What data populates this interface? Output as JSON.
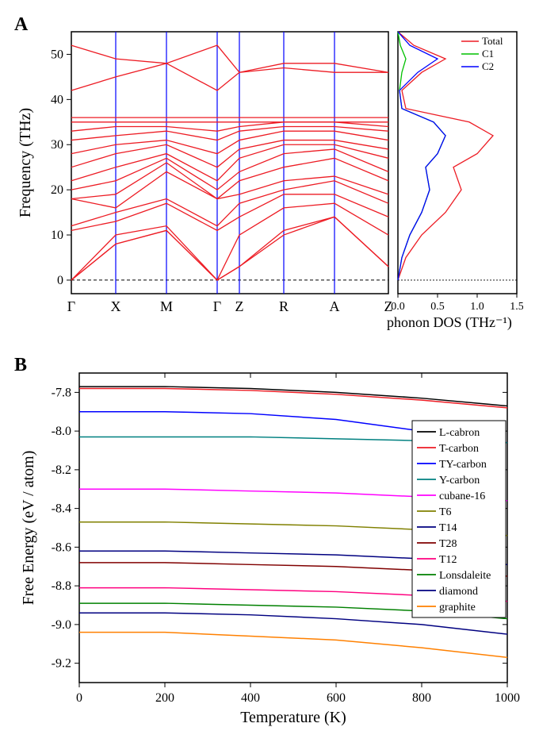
{
  "panelA": {
    "label": "A",
    "phonon_band": {
      "type": "line",
      "ylabel": "Frequency (THz)",
      "label_fontsize": 20,
      "ylim": [
        -3,
        55
      ],
      "yticks": [
        0,
        10,
        20,
        30,
        40,
        50
      ],
      "xticks": [
        "Γ",
        "X",
        "M",
        "Γ",
        "Z",
        "R",
        "A",
        "Z"
      ],
      "xtick_positions": [
        0,
        0.14,
        0.3,
        0.46,
        0.53,
        0.67,
        0.83,
        1.0
      ],
      "line_color": "#ed1c24",
      "vline_color": "#0000ff",
      "frame_color": "#000000",
      "background_color": "#ffffff",
      "bands": [
        [
          [
            0,
            0
          ],
          [
            0.14,
            8
          ],
          [
            0.3,
            11
          ],
          [
            0.46,
            0
          ],
          [
            0.53,
            3
          ],
          [
            0.67,
            10
          ],
          [
            0.83,
            14
          ],
          [
            1.0,
            3
          ]
        ],
        [
          [
            0,
            0
          ],
          [
            0.14,
            8
          ],
          [
            0.3,
            11
          ],
          [
            0.46,
            0
          ],
          [
            0.53,
            3
          ],
          [
            0.67,
            11
          ],
          [
            0.83,
            14
          ],
          [
            1.0,
            3
          ]
        ],
        [
          [
            0,
            0
          ],
          [
            0.14,
            10
          ],
          [
            0.3,
            12
          ],
          [
            0.46,
            0
          ],
          [
            0.53,
            10
          ],
          [
            0.67,
            16
          ],
          [
            0.83,
            17
          ],
          [
            1.0,
            10
          ]
        ],
        [
          [
            0,
            11
          ],
          [
            0.14,
            13
          ],
          [
            0.3,
            17
          ],
          [
            0.46,
            11
          ],
          [
            0.53,
            14
          ],
          [
            0.67,
            19
          ],
          [
            0.83,
            19
          ],
          [
            1.0,
            14
          ]
        ],
        [
          [
            0,
            12
          ],
          [
            0.14,
            15
          ],
          [
            0.3,
            18
          ],
          [
            0.46,
            12
          ],
          [
            0.53,
            17
          ],
          [
            0.67,
            20
          ],
          [
            0.83,
            22
          ],
          [
            1.0,
            17
          ]
        ],
        [
          [
            0,
            18
          ],
          [
            0.14,
            16
          ],
          [
            0.3,
            24
          ],
          [
            0.46,
            18
          ],
          [
            0.53,
            19
          ],
          [
            0.67,
            22
          ],
          [
            0.83,
            23
          ],
          [
            1.0,
            19
          ]
        ],
        [
          [
            0,
            18
          ],
          [
            0.14,
            19
          ],
          [
            0.3,
            26
          ],
          [
            0.46,
            18
          ],
          [
            0.53,
            22
          ],
          [
            0.67,
            25
          ],
          [
            0.83,
            27
          ],
          [
            1.0,
            22
          ]
        ],
        [
          [
            0,
            20
          ],
          [
            0.14,
            22
          ],
          [
            0.3,
            27
          ],
          [
            0.46,
            20
          ],
          [
            0.53,
            24
          ],
          [
            0.67,
            28
          ],
          [
            0.83,
            29
          ],
          [
            1.0,
            24
          ]
        ],
        [
          [
            0,
            22
          ],
          [
            0.14,
            25
          ],
          [
            0.3,
            28
          ],
          [
            0.46,
            22
          ],
          [
            0.53,
            27
          ],
          [
            0.67,
            30
          ],
          [
            0.83,
            30
          ],
          [
            1.0,
            27
          ]
        ],
        [
          [
            0,
            25
          ],
          [
            0.14,
            28
          ],
          [
            0.3,
            30
          ],
          [
            0.46,
            25
          ],
          [
            0.53,
            29
          ],
          [
            0.67,
            31
          ],
          [
            0.83,
            31
          ],
          [
            1.0,
            29
          ]
        ],
        [
          [
            0,
            28
          ],
          [
            0.14,
            30
          ],
          [
            0.3,
            31
          ],
          [
            0.46,
            28
          ],
          [
            0.53,
            31
          ],
          [
            0.67,
            33
          ],
          [
            0.83,
            33
          ],
          [
            1.0,
            31
          ]
        ],
        [
          [
            0,
            31
          ],
          [
            0.14,
            32
          ],
          [
            0.3,
            33
          ],
          [
            0.46,
            31
          ],
          [
            0.53,
            33
          ],
          [
            0.67,
            34
          ],
          [
            0.83,
            34
          ],
          [
            1.0,
            33
          ]
        ],
        [
          [
            0,
            33
          ],
          [
            0.14,
            34
          ],
          [
            0.3,
            34
          ],
          [
            0.46,
            33
          ],
          [
            0.53,
            34
          ],
          [
            0.67,
            35
          ],
          [
            0.83,
            35
          ],
          [
            1.0,
            34
          ]
        ],
        [
          [
            0,
            35
          ],
          [
            0.14,
            35
          ],
          [
            0.3,
            35
          ],
          [
            0.46,
            35
          ],
          [
            0.53,
            35
          ],
          [
            0.67,
            35
          ],
          [
            0.83,
            35
          ],
          [
            1.0,
            35
          ]
        ],
        [
          [
            0,
            36
          ],
          [
            0.14,
            36
          ],
          [
            0.3,
            36
          ],
          [
            0.46,
            36
          ],
          [
            0.53,
            36
          ],
          [
            0.67,
            36
          ],
          [
            0.83,
            36
          ],
          [
            1.0,
            36
          ]
        ],
        [
          [
            0,
            42
          ],
          [
            0.14,
            45
          ],
          [
            0.3,
            48
          ],
          [
            0.46,
            42
          ],
          [
            0.53,
            46
          ],
          [
            0.67,
            47
          ],
          [
            0.83,
            46
          ],
          [
            1.0,
            46
          ]
        ],
        [
          [
            0,
            52
          ],
          [
            0.14,
            49
          ],
          [
            0.3,
            48
          ],
          [
            0.46,
            52
          ],
          [
            0.53,
            46
          ],
          [
            0.67,
            48
          ],
          [
            0.83,
            48
          ],
          [
            1.0,
            46
          ]
        ]
      ]
    },
    "phonon_dos": {
      "type": "line",
      "xlabel": "phonon DOS",
      "xunit": "(THz⁻¹)",
      "label_fontsize": 18,
      "xlim": [
        0,
        1.5
      ],
      "xticks": [
        0.0,
        0.5,
        1.0,
        1.5
      ],
      "background_color": "#ffffff",
      "frame_color": "#000000",
      "legend": [
        {
          "label": "Total",
          "color": "#ed1c24"
        },
        {
          "label": "C1",
          "color": "#00c000"
        },
        {
          "label": "C2",
          "color": "#0000ff"
        }
      ],
      "series": {
        "total": {
          "color": "#ed1c24",
          "data": [
            [
              0,
              0
            ],
            [
              0.1,
              5
            ],
            [
              0.3,
              10
            ],
            [
              0.6,
              15
            ],
            [
              0.8,
              20
            ],
            [
              0.7,
              25
            ],
            [
              1.0,
              28
            ],
            [
              1.2,
              32
            ],
            [
              0.9,
              35
            ],
            [
              0.1,
              38
            ],
            [
              0.05,
              42
            ],
            [
              0.3,
              46
            ],
            [
              0.6,
              49
            ],
            [
              0.2,
              52
            ],
            [
              0,
              55
            ]
          ]
        },
        "c1": {
          "color": "#00c000",
          "data": [
            [
              0,
              0
            ],
            [
              0.05,
              5
            ],
            [
              0.15,
              10
            ],
            [
              0.3,
              15
            ],
            [
              0.4,
              20
            ],
            [
              0.35,
              25
            ],
            [
              0.5,
              28
            ],
            [
              0.6,
              32
            ],
            [
              0.45,
              35
            ],
            [
              0.05,
              38
            ],
            [
              0.02,
              42
            ],
            [
              0.05,
              46
            ],
            [
              0.1,
              49
            ],
            [
              0.03,
              52
            ],
            [
              0,
              55
            ]
          ]
        },
        "c2": {
          "color": "#0000ff",
          "data": [
            [
              0,
              0
            ],
            [
              0.05,
              5
            ],
            [
              0.15,
              10
            ],
            [
              0.3,
              15
            ],
            [
              0.4,
              20
            ],
            [
              0.35,
              25
            ],
            [
              0.5,
              28
            ],
            [
              0.6,
              32
            ],
            [
              0.45,
              35
            ],
            [
              0.05,
              38
            ],
            [
              0.02,
              42
            ],
            [
              0.25,
              46
            ],
            [
              0.5,
              49
            ],
            [
              0.15,
              52
            ],
            [
              0,
              55
            ]
          ]
        }
      }
    }
  },
  "panelB": {
    "label": "B",
    "type": "line",
    "xlabel": "Temperature (K)",
    "ylabel": "Free Energy (eV / atom)",
    "label_fontsize": 20,
    "xlim": [
      0,
      1000
    ],
    "xticks": [
      0,
      200,
      400,
      600,
      800,
      1000
    ],
    "ylim": [
      -9.3,
      -7.7
    ],
    "yticks": [
      -7.8,
      -8.0,
      -8.2,
      -8.4,
      -8.6,
      -8.8,
      -9.0,
      -9.2
    ],
    "background_color": "#ffffff",
    "frame_color": "#000000",
    "legend_box": true,
    "series": [
      {
        "label": "L-cabron",
        "color": "#000000",
        "data": [
          [
            0,
            -7.77
          ],
          [
            200,
            -7.77
          ],
          [
            400,
            -7.78
          ],
          [
            600,
            -7.8
          ],
          [
            800,
            -7.83
          ],
          [
            1000,
            -7.87
          ]
        ]
      },
      {
        "label": "T-carbon",
        "color": "#ed1c24",
        "data": [
          [
            0,
            -7.78
          ],
          [
            200,
            -7.78
          ],
          [
            400,
            -7.79
          ],
          [
            600,
            -7.81
          ],
          [
            800,
            -7.84
          ],
          [
            1000,
            -7.88
          ]
        ]
      },
      {
        "label": "TY-carbon",
        "color": "#0000ff",
        "data": [
          [
            0,
            -7.9
          ],
          [
            200,
            -7.9
          ],
          [
            400,
            -7.91
          ],
          [
            600,
            -7.94
          ],
          [
            800,
            -8.0
          ],
          [
            1000,
            -8.06
          ]
        ]
      },
      {
        "label": "Y-carbon",
        "color": "#008080",
        "data": [
          [
            0,
            -8.03
          ],
          [
            200,
            -8.03
          ],
          [
            400,
            -8.03
          ],
          [
            600,
            -8.04
          ],
          [
            800,
            -8.05
          ],
          [
            1000,
            -8.06
          ]
        ]
      },
      {
        "label": "cubane-16",
        "color": "#ff00ff",
        "data": [
          [
            0,
            -8.3
          ],
          [
            200,
            -8.3
          ],
          [
            400,
            -8.31
          ],
          [
            600,
            -8.32
          ],
          [
            800,
            -8.34
          ],
          [
            1000,
            -8.36
          ]
        ]
      },
      {
        "label": "T6",
        "color": "#808000",
        "data": [
          [
            0,
            -8.47
          ],
          [
            200,
            -8.47
          ],
          [
            400,
            -8.48
          ],
          [
            600,
            -8.49
          ],
          [
            800,
            -8.51
          ],
          [
            1000,
            -8.54
          ]
        ]
      },
      {
        "label": "T14",
        "color": "#000080",
        "data": [
          [
            0,
            -8.62
          ],
          [
            200,
            -8.62
          ],
          [
            400,
            -8.63
          ],
          [
            600,
            -8.64
          ],
          [
            800,
            -8.66
          ],
          [
            1000,
            -8.69
          ]
        ]
      },
      {
        "label": "T28",
        "color": "#800000",
        "data": [
          [
            0,
            -8.68
          ],
          [
            200,
            -8.68
          ],
          [
            400,
            -8.69
          ],
          [
            600,
            -8.7
          ],
          [
            800,
            -8.72
          ],
          [
            1000,
            -8.75
          ]
        ]
      },
      {
        "label": "T12",
        "color": "#ff007f",
        "data": [
          [
            0,
            -8.81
          ],
          [
            200,
            -8.81
          ],
          [
            400,
            -8.82
          ],
          [
            600,
            -8.83
          ],
          [
            800,
            -8.85
          ],
          [
            1000,
            -8.88
          ]
        ]
      },
      {
        "label": "Lonsdaleite",
        "color": "#008000",
        "data": [
          [
            0,
            -8.89
          ],
          [
            200,
            -8.89
          ],
          [
            400,
            -8.9
          ],
          [
            600,
            -8.91
          ],
          [
            800,
            -8.93
          ],
          [
            1000,
            -8.97
          ]
        ]
      },
      {
        "label": "diamond",
        "color": "#000080",
        "data": [
          [
            0,
            -8.94
          ],
          [
            200,
            -8.94
          ],
          [
            400,
            -8.95
          ],
          [
            600,
            -8.97
          ],
          [
            800,
            -9.0
          ],
          [
            1000,
            -9.05
          ]
        ]
      },
      {
        "label": "graphite",
        "color": "#ff8000",
        "data": [
          [
            0,
            -9.04
          ],
          [
            200,
            -9.04
          ],
          [
            400,
            -9.06
          ],
          [
            600,
            -9.08
          ],
          [
            800,
            -9.12
          ],
          [
            1000,
            -9.17
          ]
        ]
      }
    ]
  }
}
